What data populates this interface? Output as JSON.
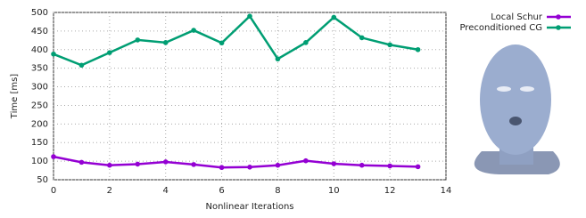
{
  "chart_data": {
    "type": "line",
    "x_label": "Nonlinear Iterations",
    "y_label": "Time [ms]",
    "x": [
      0,
      1,
      2,
      3,
      4,
      5,
      6,
      7,
      8,
      9,
      10,
      11,
      12,
      13
    ],
    "series": [
      {
        "name": "Local Schur",
        "color": "#9400d3",
        "values": [
          112,
          97,
          89,
          92,
          98,
          91,
          83,
          84,
          89,
          101,
          93,
          89,
          87,
          85
        ]
      },
      {
        "name": "Preconditioned CG",
        "color": "#009e73",
        "values": [
          388,
          358,
          392,
          426,
          419,
          452,
          418,
          490,
          375,
          419,
          487,
          432,
          413,
          400
        ]
      }
    ],
    "xlim": [
      0,
      14
    ],
    "xticks": [
      0,
      2,
      4,
      6,
      8,
      10,
      12,
      14
    ],
    "ylim": [
      50,
      500
    ],
    "yticks": [
      50,
      100,
      150,
      200,
      250,
      300,
      350,
      400,
      450,
      500
    ],
    "grid": true
  }
}
